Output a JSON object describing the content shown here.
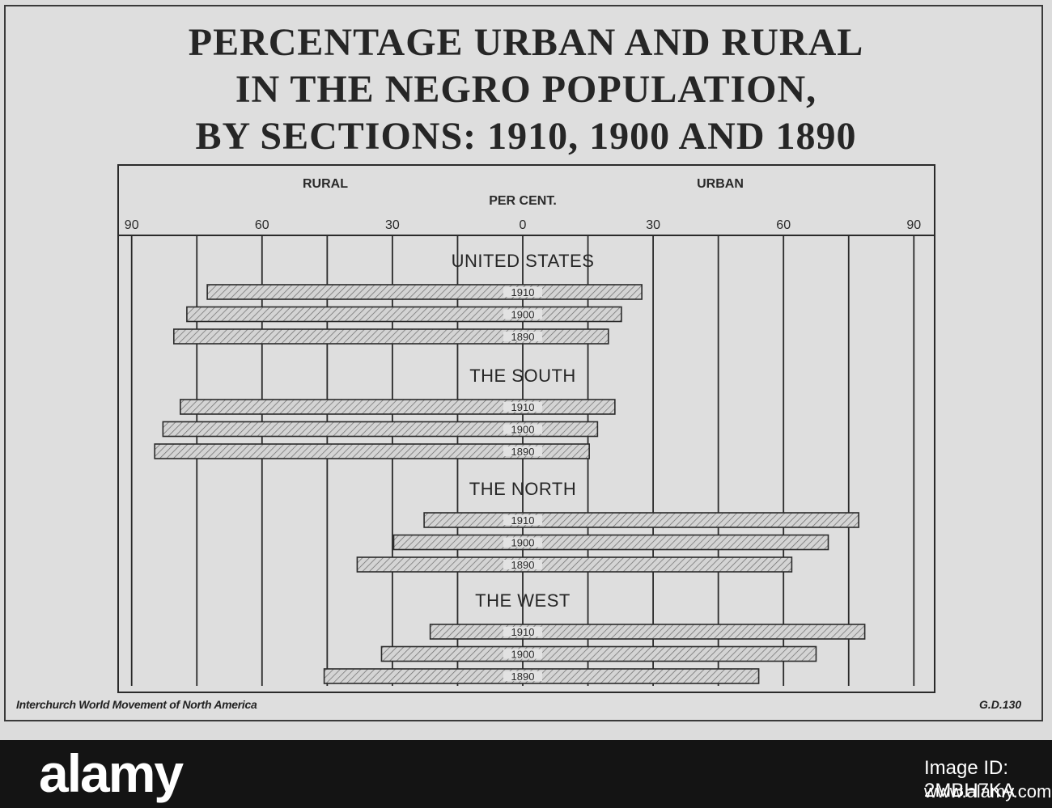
{
  "title_lines": [
    "PERCENTAGE URBAN AND RURAL",
    "IN THE NEGRO POPULATION,",
    "BY SECTIONS: 1910, 1900 AND 1890"
  ],
  "source": "Interchurch World Movement of North America",
  "code": "G.D.130",
  "watermark": {
    "brand": "alamy",
    "image_id": "Image ID: 2MBH7KA",
    "site": "www.alamy.com"
  },
  "colors": {
    "ink": "#2a2a2a",
    "paper": "#dedede",
    "bar_fill": "#d2d2d2"
  },
  "chart_data": {
    "type": "bar",
    "orientation": "horizontal-diverging",
    "left_label": "RURAL",
    "right_label": "URBAN",
    "axis_label": "PER CENT.",
    "ticks": [
      90,
      60,
      30,
      0,
      30,
      60,
      90
    ],
    "xlim": [
      -90,
      90
    ],
    "bar_pattern": "hatched",
    "groups": [
      {
        "name": "UNITED STATES",
        "bars": [
          {
            "year": "1910",
            "rural": 72.6,
            "urban": 27.4
          },
          {
            "year": "1900",
            "rural": 77.3,
            "urban": 22.7
          },
          {
            "year": "1890",
            "rural": 80.3,
            "urban": 19.7
          }
        ]
      },
      {
        "name": "THE SOUTH",
        "bars": [
          {
            "year": "1910",
            "rural": 78.8,
            "urban": 21.2
          },
          {
            "year": "1900",
            "rural": 82.8,
            "urban": 17.2
          },
          {
            "year": "1890",
            "rural": 84.7,
            "urban": 15.3
          }
        ]
      },
      {
        "name": "THE NORTH",
        "bars": [
          {
            "year": "1910",
            "rural": 22.7,
            "urban": 77.3
          },
          {
            "year": "1900",
            "rural": 29.7,
            "urban": 70.3
          },
          {
            "year": "1890",
            "rural": 38.1,
            "urban": 61.9
          }
        ]
      },
      {
        "name": "THE WEST",
        "bars": [
          {
            "year": "1910",
            "rural": 21.3,
            "urban": 78.7
          },
          {
            "year": "1900",
            "rural": 32.5,
            "urban": 67.5
          },
          {
            "year": "1890",
            "rural": 45.7,
            "urban": 54.3
          }
        ]
      }
    ]
  }
}
